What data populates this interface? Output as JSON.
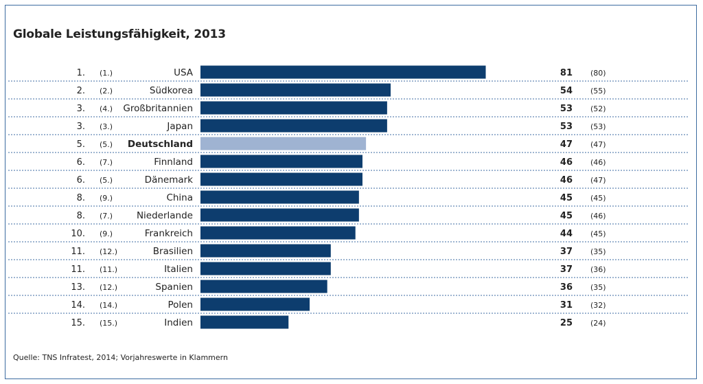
{
  "title": "Globale Leistungsfähigkeit, 2013",
  "source": "Quelle: TNS Infratest, 2014; Vorjahreswerte in Klammern",
  "colors": {
    "bar": "#0d3d6e",
    "highlight": "#9fb3d2",
    "separator": "#3b6aa0"
  },
  "chart_data": {
    "type": "bar",
    "orientation": "horizontal",
    "title": "Globale Leistungsfähigkeit, 2013",
    "xlabel": "",
    "ylabel": "",
    "highlight": "Deutschland",
    "rows": [
      {
        "rank": "1.",
        "prev_rank": "(1.)",
        "country": "USA",
        "value": 81,
        "prev_value": "(80)"
      },
      {
        "rank": "2.",
        "prev_rank": "(2.)",
        "country": "Südkorea",
        "value": 54,
        "prev_value": "(55)"
      },
      {
        "rank": "3.",
        "prev_rank": "(4.)",
        "country": "Großbritannien",
        "value": 53,
        "prev_value": "(52)"
      },
      {
        "rank": "3.",
        "prev_rank": "(3.)",
        "country": "Japan",
        "value": 53,
        "prev_value": "(53)"
      },
      {
        "rank": "5.",
        "prev_rank": "(5.)",
        "country": "Deutschland",
        "value": 47,
        "prev_value": "(47)"
      },
      {
        "rank": "6.",
        "prev_rank": "(7.)",
        "country": "Finnland",
        "value": 46,
        "prev_value": "(46)"
      },
      {
        "rank": "6.",
        "prev_rank": "(5.)",
        "country": "Dänemark",
        "value": 46,
        "prev_value": "(47)"
      },
      {
        "rank": "8.",
        "prev_rank": "(9.)",
        "country": "China",
        "value": 45,
        "prev_value": "(45)"
      },
      {
        "rank": "8.",
        "prev_rank": "(7.)",
        "country": "Niederlande",
        "value": 45,
        "prev_value": "(46)"
      },
      {
        "rank": "10.",
        "prev_rank": "(9.)",
        "country": "Frankreich",
        "value": 44,
        "prev_value": "(45)"
      },
      {
        "rank": "11.",
        "prev_rank": "(12.)",
        "country": "Brasilien",
        "value": 37,
        "prev_value": "(35)"
      },
      {
        "rank": "11.",
        "prev_rank": "(11.)",
        "country": "Italien",
        "value": 37,
        "prev_value": "(36)"
      },
      {
        "rank": "13.",
        "prev_rank": "(12.)",
        "country": "Spanien",
        "value": 36,
        "prev_value": "(35)"
      },
      {
        "rank": "14.",
        "prev_rank": "(14.)",
        "country": "Polen",
        "value": 31,
        "prev_value": "(32)"
      },
      {
        "rank": "15.",
        "prev_rank": "(15.)",
        "country": "Indien",
        "value": 25,
        "prev_value": "(24)"
      }
    ]
  }
}
